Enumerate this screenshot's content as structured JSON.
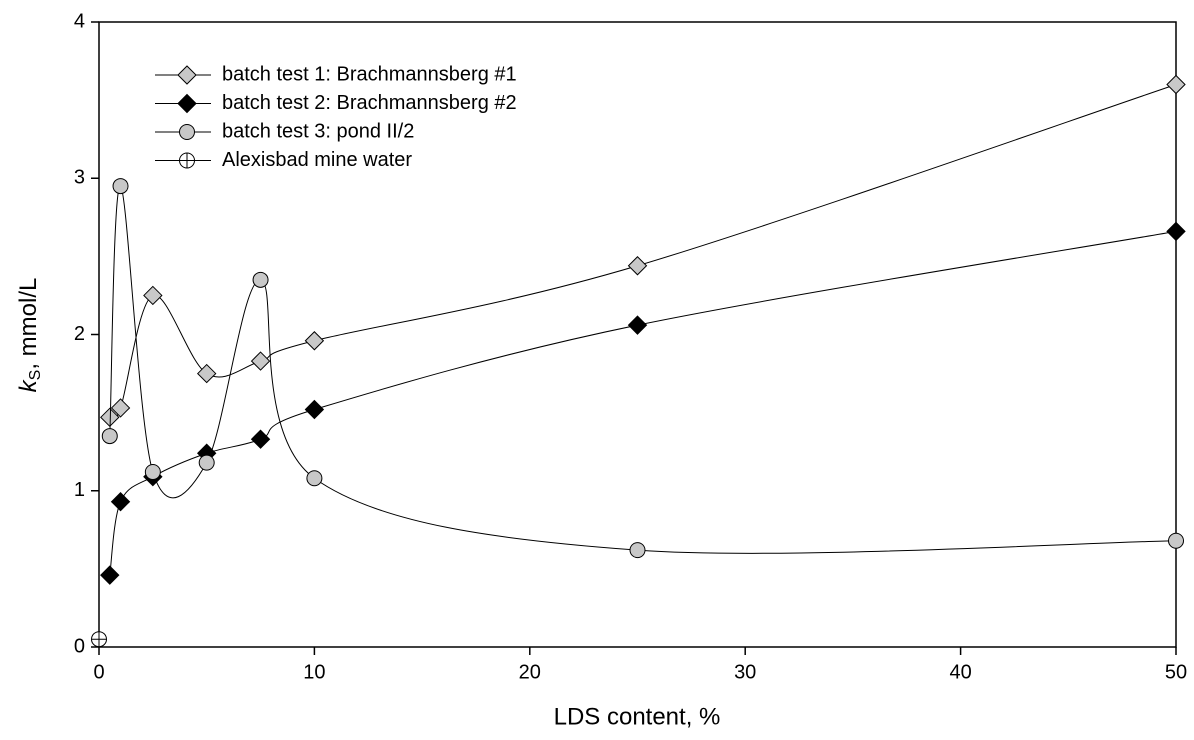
{
  "chart_data": {
    "type": "line",
    "xlabel": "LDS content, %",
    "ylabel": {
      "symbol": "k",
      "subscript": "S",
      "unit": ", mmol/L"
    },
    "xlim": [
      0,
      50
    ],
    "ylim": [
      0,
      4
    ],
    "xticks": [
      0,
      10,
      20,
      30,
      40,
      50
    ],
    "yticks": [
      0,
      1,
      2,
      3,
      4
    ],
    "legend": "upper-left",
    "series": [
      {
        "name": "batch test 1: Brachmannsberg #1",
        "color": "#c8c8c8",
        "marker": "diamond",
        "x": [
          0.5,
          1,
          2.5,
          5,
          7.5,
          10,
          25,
          50
        ],
        "values": [
          1.47,
          1.53,
          2.25,
          1.75,
          1.83,
          1.96,
          2.44,
          3.6
        ]
      },
      {
        "name": "batch test 2: Brachmannsberg #2",
        "color": "#000000",
        "marker": "diamond",
        "x": [
          0.5,
          1,
          2.5,
          5,
          7.5,
          10,
          25,
          50
        ],
        "values": [
          0.46,
          0.93,
          1.09,
          1.24,
          1.33,
          1.52,
          2.06,
          2.66
        ]
      },
      {
        "name": "batch test 3: pond II/2",
        "color": "#c8c8c8",
        "marker": "circle",
        "x": [
          0.5,
          1,
          2.5,
          5,
          7.5,
          10,
          25,
          50
        ],
        "values": [
          1.35,
          2.95,
          1.12,
          1.18,
          2.35,
          1.08,
          0.62,
          0.68
        ]
      },
      {
        "name": "Alexisbad mine water",
        "color": "#ffffff",
        "marker": "crosshair-circle",
        "x": [
          0
        ],
        "values": [
          0.05
        ]
      }
    ]
  }
}
